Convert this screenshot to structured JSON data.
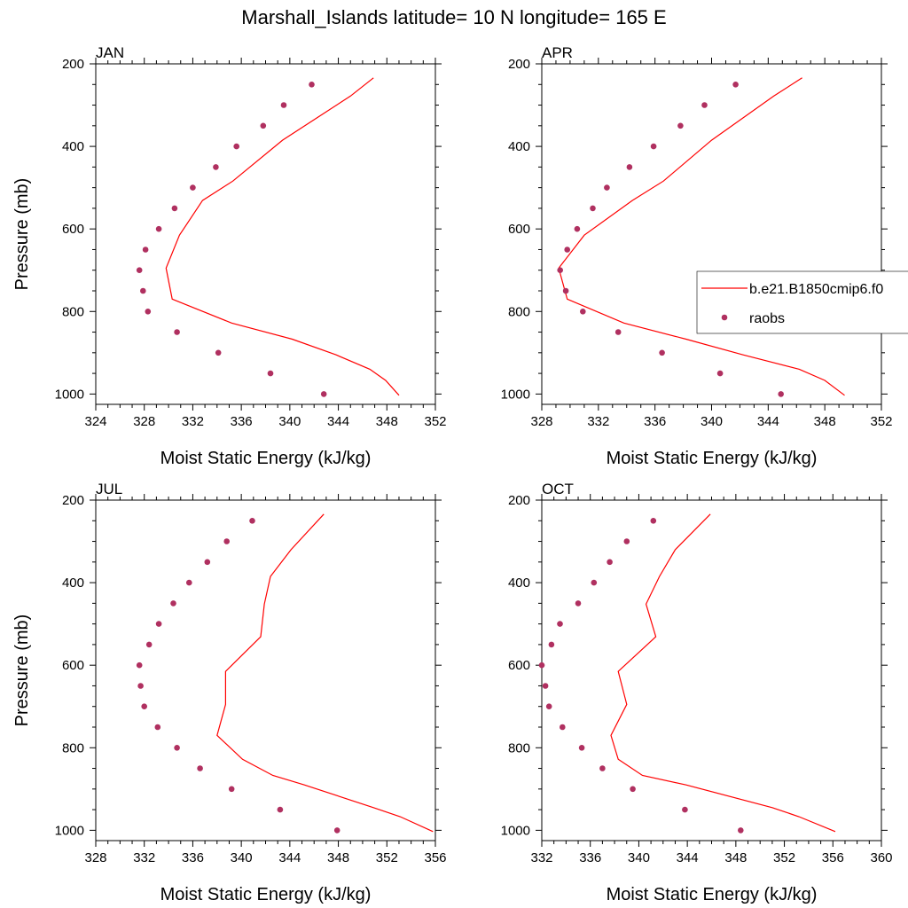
{
  "title": "Marshall_Islands  latitude= 10 N longitude= 165 E",
  "colors": {
    "model": "#ff0000",
    "obs": "#b03060",
    "frame": "#000000"
  },
  "legend": {
    "entries": [
      {
        "label": "b.e21.B1850cmip6.f0",
        "kind": "line"
      },
      {
        "label": "raobs",
        "kind": "marker"
      }
    ],
    "placement": "right, overlapping APR panel"
  },
  "chart_data": [
    {
      "type": "line",
      "panel": "JAN",
      "xlabel": "Moist Static Energy (kJ/kg)",
      "ylabel": "Pressure (mb)",
      "xlim": [
        324,
        352
      ],
      "ylim": [
        1025,
        200
      ],
      "xticks": [
        324,
        328,
        332,
        336,
        340,
        344,
        348,
        352
      ],
      "yticks": [
        200,
        400,
        600,
        800,
        1000
      ],
      "series": [
        {
          "name": "b.e21.B1850cmip6.f0",
          "style": "line",
          "points": [
            [
              346.9,
              234
            ],
            [
              345.0,
              278
            ],
            [
              339.4,
              385
            ],
            [
              335.3,
              484
            ],
            [
              332.8,
              531
            ],
            [
              330.9,
              615
            ],
            [
              329.8,
              695
            ],
            [
              330.3,
              770
            ],
            [
              335.2,
              828
            ],
            [
              340.2,
              867
            ],
            [
              343.8,
              905
            ],
            [
              346.6,
              940
            ],
            [
              347.9,
              967
            ],
            [
              349.0,
              1003
            ]
          ]
        },
        {
          "name": "raobs",
          "style": "marker",
          "points": [
            [
              341.8,
              250
            ],
            [
              339.5,
              300
            ],
            [
              337.8,
              350
            ],
            [
              335.6,
              400
            ],
            [
              333.9,
              450
            ],
            [
              332.0,
              500
            ],
            [
              330.5,
              550
            ],
            [
              329.2,
              600
            ],
            [
              328.1,
              650
            ],
            [
              327.6,
              700
            ],
            [
              327.9,
              750
            ],
            [
              328.3,
              800
            ],
            [
              330.7,
              850
            ],
            [
              334.1,
              900
            ],
            [
              338.4,
              950
            ],
            [
              342.8,
              1000
            ]
          ]
        }
      ]
    },
    {
      "type": "line",
      "panel": "APR",
      "xlabel": "Moist Static Energy (kJ/kg)",
      "ylabel": "",
      "xlim": [
        328,
        352
      ],
      "ylim": [
        1025,
        200
      ],
      "xticks": [
        328,
        332,
        336,
        340,
        344,
        348,
        352
      ],
      "yticks": [
        200,
        400,
        600,
        800,
        1000
      ],
      "series": [
        {
          "name": "b.e21.B1850cmip6.f0",
          "style": "line",
          "points": [
            [
              346.4,
              234
            ],
            [
              344.4,
              278
            ],
            [
              340.0,
              385
            ],
            [
              336.6,
              484
            ],
            [
              334.4,
              531
            ],
            [
              331.0,
              615
            ],
            [
              329.2,
              695
            ],
            [
              329.8,
              770
            ],
            [
              333.8,
              828
            ],
            [
              338.2,
              867
            ],
            [
              342.2,
              905
            ],
            [
              346.2,
              940
            ],
            [
              348.0,
              967
            ],
            [
              349.4,
              1003
            ]
          ]
        },
        {
          "name": "raobs",
          "style": "marker",
          "points": [
            [
              341.7,
              250
            ],
            [
              339.5,
              300
            ],
            [
              337.8,
              350
            ],
            [
              335.9,
              400
            ],
            [
              334.2,
              450
            ],
            [
              332.6,
              500
            ],
            [
              331.6,
              550
            ],
            [
              330.5,
              600
            ],
            [
              329.8,
              650
            ],
            [
              329.3,
              700
            ],
            [
              329.7,
              750
            ],
            [
              330.9,
              800
            ],
            [
              333.4,
              850
            ],
            [
              336.5,
              900
            ],
            [
              340.6,
              950
            ],
            [
              344.9,
              1000
            ]
          ]
        }
      ]
    },
    {
      "type": "line",
      "panel": "JUL",
      "xlabel": "Moist Static Energy (kJ/kg)",
      "ylabel": "Pressure (mb)",
      "xlim": [
        328,
        356
      ],
      "ylim": [
        1025,
        200
      ],
      "xticks": [
        328,
        332,
        336,
        340,
        344,
        348,
        352,
        356
      ],
      "yticks": [
        200,
        400,
        600,
        800,
        1000
      ],
      "series": [
        {
          "name": "b.e21.B1850cmip6.f0",
          "style": "line",
          "points": [
            [
              346.8,
              234
            ],
            [
              344.1,
              320
            ],
            [
              342.4,
              385
            ],
            [
              341.9,
              452
            ],
            [
              341.6,
              531
            ],
            [
              338.7,
              615
            ],
            [
              338.7,
              695
            ],
            [
              338.0,
              770
            ],
            [
              340.1,
              828
            ],
            [
              342.6,
              867
            ],
            [
              345.2,
              890
            ],
            [
              350.9,
              945
            ],
            [
              353.1,
              967
            ],
            [
              355.8,
              1003
            ]
          ]
        },
        {
          "name": "raobs",
          "style": "marker",
          "points": [
            [
              340.9,
              250
            ],
            [
              338.8,
              300
            ],
            [
              337.2,
              350
            ],
            [
              335.7,
              400
            ],
            [
              334.4,
              450
            ],
            [
              333.2,
              500
            ],
            [
              332.4,
              550
            ],
            [
              331.6,
              600
            ],
            [
              331.7,
              650
            ],
            [
              332.0,
              700
            ],
            [
              333.1,
              750
            ],
            [
              334.7,
              800
            ],
            [
              336.6,
              850
            ],
            [
              339.2,
              900
            ],
            [
              343.2,
              950
            ],
            [
              347.9,
              1000
            ]
          ]
        }
      ]
    },
    {
      "type": "line",
      "panel": "OCT",
      "xlabel": "Moist Static Energy (kJ/kg)",
      "ylabel": "",
      "xlim": [
        332,
        360
      ],
      "ylim": [
        1025,
        200
      ],
      "xticks": [
        332,
        336,
        340,
        344,
        348,
        352,
        356,
        360
      ],
      "yticks": [
        200,
        400,
        600,
        800,
        1000
      ],
      "series": [
        {
          "name": "b.e21.B1850cmip6.f0",
          "style": "line",
          "points": [
            [
              345.9,
              234
            ],
            [
              343.0,
              320
            ],
            [
              341.7,
              385
            ],
            [
              340.6,
              452
            ],
            [
              341.4,
              531
            ],
            [
              338.3,
              615
            ],
            [
              339.0,
              695
            ],
            [
              337.7,
              770
            ],
            [
              338.3,
              828
            ],
            [
              340.3,
              867
            ],
            [
              343.9,
              890
            ],
            [
              351.0,
              945
            ],
            [
              353.2,
              967
            ],
            [
              356.2,
              1003
            ]
          ]
        },
        {
          "name": "raobs",
          "style": "marker",
          "points": [
            [
              341.2,
              250
            ],
            [
              339.0,
              300
            ],
            [
              337.6,
              350
            ],
            [
              336.3,
              400
            ],
            [
              335.0,
              450
            ],
            [
              333.5,
              500
            ],
            [
              332.8,
              550
            ],
            [
              332.0,
              600
            ],
            [
              332.3,
              650
            ],
            [
              332.6,
              700
            ],
            [
              333.7,
              750
            ],
            [
              335.3,
              800
            ],
            [
              337.0,
              850
            ],
            [
              339.5,
              900
            ],
            [
              343.8,
              950
            ],
            [
              348.4,
              1000
            ]
          ]
        }
      ]
    }
  ]
}
